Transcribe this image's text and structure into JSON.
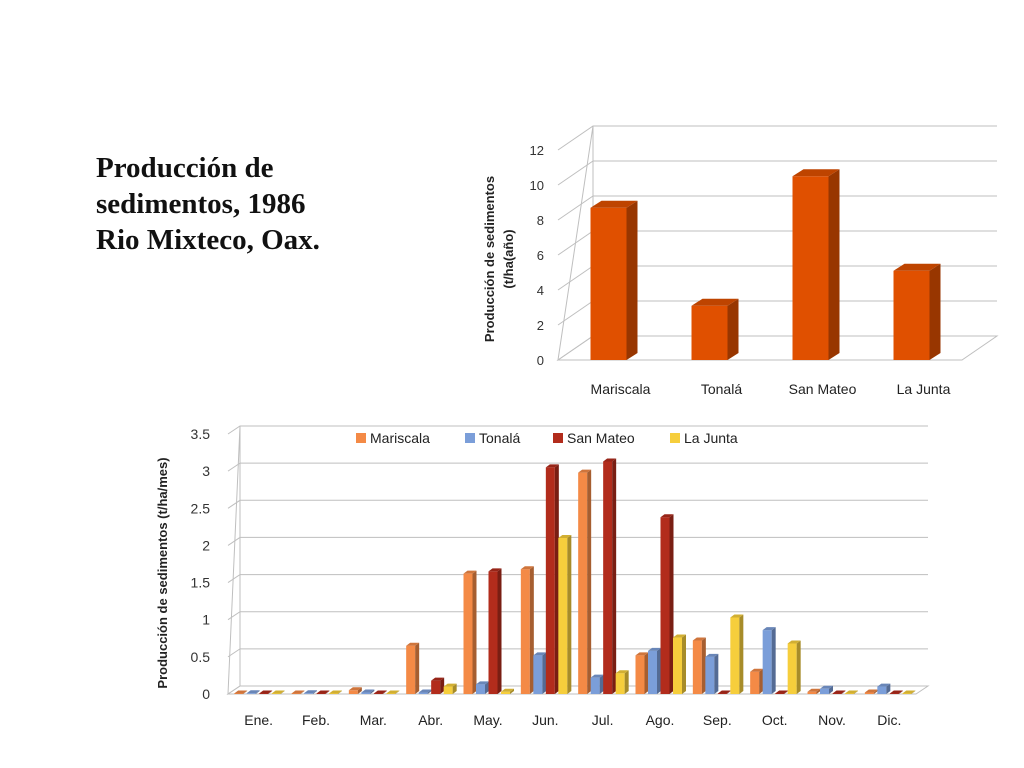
{
  "title_lines": [
    "Producción de",
    "sedimentos, 1986",
    "Rio Mixteco, Oax."
  ],
  "chart_data": [
    {
      "type": "bar",
      "categories": [
        "Mariscala",
        "Tonalá",
        "San Mateo",
        "La Junta"
      ],
      "values": [
        8.7,
        3.1,
        10.5,
        5.1
      ],
      "ylabel_lines": [
        "Producción de sedimentos",
        "(t/ha(año)"
      ],
      "ylim": [
        0,
        12
      ],
      "yticks": [
        "0",
        "2",
        "4",
        "6",
        "8",
        "10",
        "12"
      ],
      "grid": true,
      "color": "#e05000"
    },
    {
      "type": "bar",
      "categories": [
        "Ene.",
        "Feb.",
        "Mar.",
        "Abr.",
        "May.",
        "Jun.",
        "Jul.",
        "Ago.",
        "Sep.",
        "Oct.",
        "Nov.",
        "Dic."
      ],
      "series": [
        {
          "name": "Mariscala",
          "color": "#f48a46",
          "values": [
            0,
            0,
            0.05,
            0.65,
            1.62,
            1.68,
            2.98,
            0.52,
            0.72,
            0.3,
            0.03,
            0.02
          ]
        },
        {
          "name": "Tonalá",
          "color": "#7b9ed9",
          "values": [
            0.01,
            0.01,
            0.02,
            0.02,
            0.13,
            0.52,
            0.22,
            0.58,
            0.5,
            0.86,
            0.07,
            0.1
          ]
        },
        {
          "name": "San Mateo",
          "color": "#b22c1c",
          "values": [
            0,
            0,
            0,
            0.18,
            1.65,
            3.05,
            3.13,
            2.38,
            0,
            0,
            0,
            0
          ]
        },
        {
          "name": "La Junta",
          "color": "#f6ce3c",
          "values": [
            0,
            0,
            0,
            0.1,
            0.03,
            2.1,
            0.28,
            0.76,
            1.03,
            0.68,
            0,
            0
          ]
        }
      ],
      "ylabel": "Producción de sedimentos (t/ha/mes)",
      "ylim": [
        0,
        3.5
      ],
      "yticks": [
        "0",
        "0.5",
        "1",
        "1.5",
        "2",
        "2.5",
        "3",
        "3.5"
      ],
      "grid": true,
      "legend_position": "top"
    }
  ]
}
